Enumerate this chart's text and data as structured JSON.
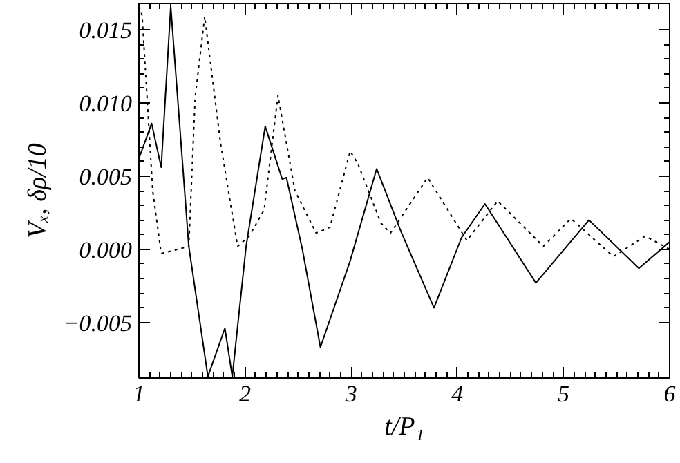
{
  "chart_data": {
    "type": "line",
    "xlabel": "t/P₁",
    "ylabel": "Vₓ, δρ/10",
    "xlim": [
      1,
      6
    ],
    "xticks": [
      1,
      2,
      3,
      4,
      5,
      6
    ],
    "ylim": [
      -0.0088,
      0.0168
    ],
    "yticks": [
      {
        "value": -0.005,
        "label": "−0.005"
      },
      {
        "value": 0,
        "label": "0.000"
      },
      {
        "value": 0.005,
        "label": "0.005"
      },
      {
        "value": 0.01,
        "label": "0.010"
      },
      {
        "value": 0.015,
        "label": "0.015"
      }
    ],
    "grid": false,
    "tick_labels": "xy",
    "series": [
      {
        "color": "#000000",
        "line_style": "solid",
        "x": [
          1.0,
          1.12,
          1.21,
          1.3,
          1.47,
          1.65,
          1.81,
          1.88,
          2.01,
          2.19,
          2.35,
          2.39,
          2.54,
          2.71,
          2.99,
          3.24,
          3.47,
          3.78,
          4.04,
          4.26,
          4.74,
          5.24,
          5.71,
          6.0
        ],
        "values": [
          0.0062,
          0.0086,
          0.0056,
          0.0166,
          0.0002,
          -0.0087,
          -0.0054,
          -0.0087,
          0.0002,
          0.0084,
          0.0048,
          0.0049,
          0.0,
          -0.0067,
          -0.0008,
          0.0055,
          0.0012,
          -0.004,
          0.0008,
          0.0031,
          -0.0023,
          0.002,
          -0.0013,
          0.0005
        ]
      },
      {
        "color": "#000000",
        "line_style": "dotted",
        "x": [
          1.0,
          1.03,
          1.13,
          1.21,
          1.37,
          1.47,
          1.53,
          1.62,
          1.77,
          1.93,
          2.04,
          2.18,
          2.31,
          2.47,
          2.67,
          2.8,
          2.99,
          3.06,
          3.28,
          3.37,
          3.72,
          4.09,
          4.38,
          4.81,
          5.07,
          5.47,
          5.77,
          6.0
        ],
        "values": [
          0.0166,
          0.016,
          0.004,
          -0.0003,
          0.0,
          0.0002,
          0.0104,
          0.0159,
          0.0072,
          0.0002,
          0.0009,
          0.0027,
          0.0105,
          0.004,
          0.0011,
          0.0015,
          0.0067,
          0.0059,
          0.0018,
          0.0011,
          0.0049,
          0.0006,
          0.0033,
          0.0002,
          0.0021,
          -0.0005,
          0.0009,
          0.0
        ]
      }
    ]
  }
}
